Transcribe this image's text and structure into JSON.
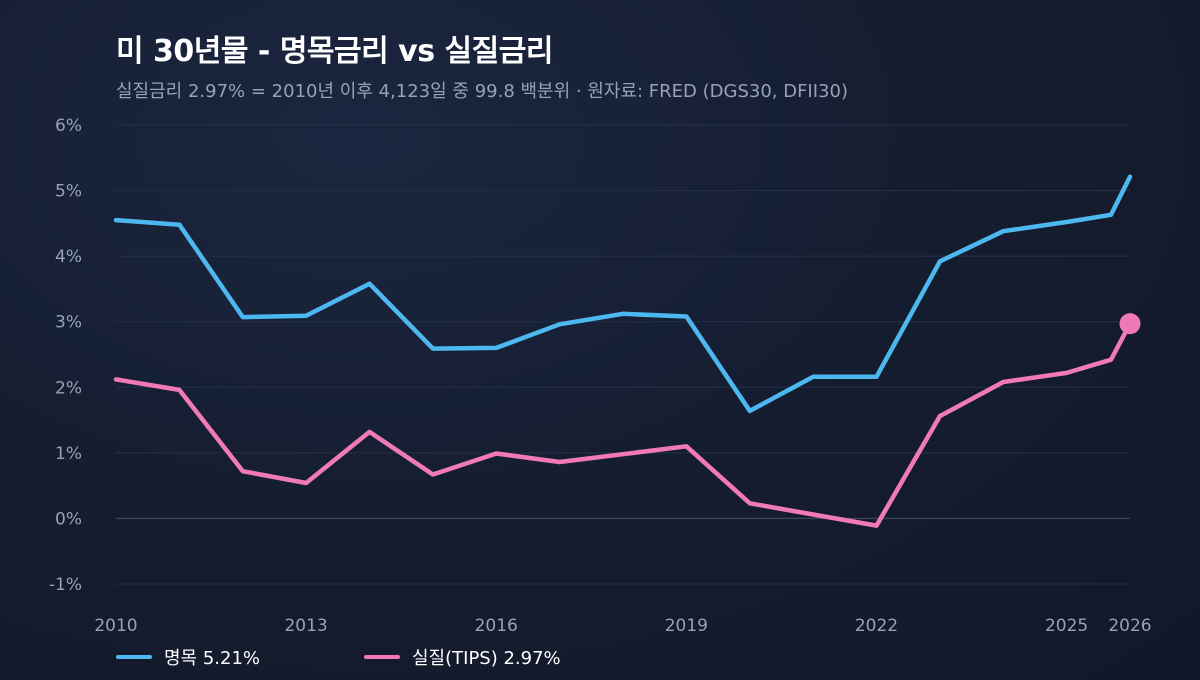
{
  "title": "미 30년물 - 명목금리 vs 실질금리",
  "subtitle": "실질금리 2.97% = 2010년 이후 4,123일 중 99.8 백분위  ·  원자료: FRED (DGS30, DFII30)",
  "legend": [
    {
      "label": "명목 5.21%",
      "color": "#4db8f0"
    },
    {
      "label": "실질(TIPS) 2.97%",
      "color": "#f07ab8"
    }
  ],
  "chart_data": {
    "type": "line",
    "title": "미 30년물 - 명목금리 vs 실질금리",
    "xlim": [
      2010,
      2026
    ],
    "ylim": [
      -1,
      6
    ],
    "yticks": [
      "-1%",
      "0%",
      "1%",
      "2%",
      "3%",
      "4%",
      "5%",
      "6%"
    ],
    "xticks": [
      "2010",
      "2013",
      "2016",
      "2019",
      "2022",
      "2025",
      "2026"
    ],
    "grid": true,
    "legend_position": "bottom-left",
    "x": [
      2010,
      2011,
      2012,
      2013,
      2014,
      2015,
      2016,
      2017,
      2018,
      2019,
      2020,
      2021,
      2022,
      2023,
      2024,
      2025,
      2025.7,
      2026
    ],
    "series": [
      {
        "name": "명목",
        "color": "#4db8f0",
        "values": [
          4.55,
          4.48,
          3.07,
          3.09,
          3.58,
          2.59,
          2.6,
          2.96,
          3.12,
          3.08,
          1.64,
          2.16,
          2.16,
          3.92,
          4.38,
          4.52,
          4.63,
          5.21
        ]
      },
      {
        "name": "실질(TIPS)",
        "color": "#f07ab8",
        "values": [
          2.12,
          1.96,
          0.72,
          0.54,
          1.32,
          0.67,
          0.99,
          0.86,
          0.98,
          1.1,
          0.23,
          0.06,
          -0.11,
          1.56,
          2.08,
          2.22,
          2.42,
          2.97
        ],
        "endpoint_marker": true
      }
    ]
  }
}
